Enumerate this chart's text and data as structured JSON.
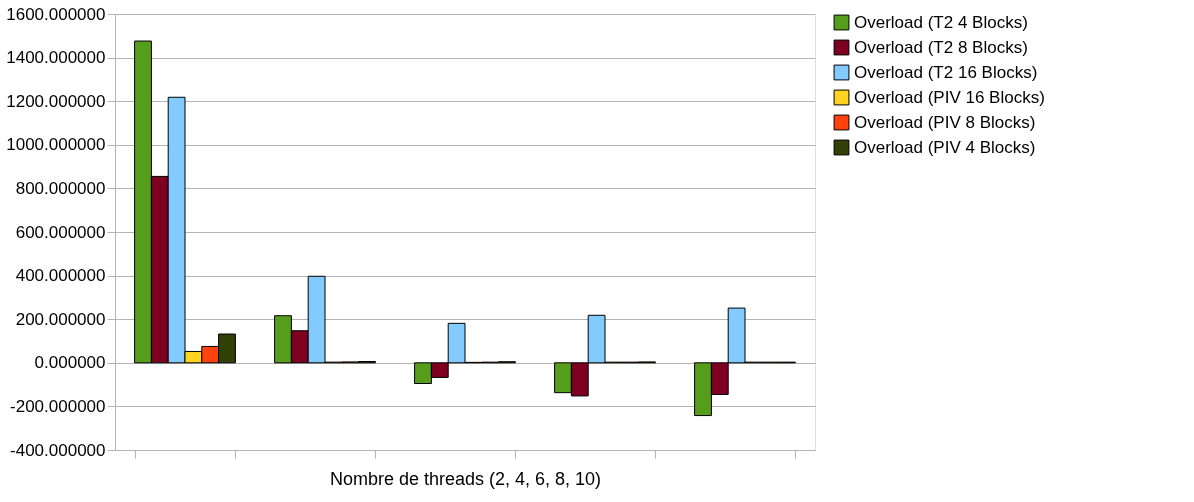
{
  "chart_data": {
    "type": "bar",
    "xlabel": "Nombre de threads (2, 4, 6, 8, 10)",
    "categories": [
      null,
      null,
      null,
      null,
      null
    ],
    "series": [
      {
        "name": "Overload (T2 4 Blocks)",
        "color": "#579d1c",
        "values": [
          1476,
          216,
          -95,
          -137,
          -242
        ]
      },
      {
        "name": "Overload (T2 8 Blocks)",
        "color": "#7e0021",
        "values": [
          855,
          147,
          -67,
          -152,
          -145
        ]
      },
      {
        "name": "Overload (T2 16 Blocks)",
        "color": "#83caff",
        "values": [
          1218,
          397,
          181,
          218,
          251
        ]
      },
      {
        "name": "Overload (PIV 16 Blocks)",
        "color": "#ffd320",
        "values": [
          52,
          3,
          2,
          3,
          3
        ]
      },
      {
        "name": "Overload (PIV 8 Blocks)",
        "color": "#ff420e",
        "values": [
          75,
          4,
          3,
          3,
          3
        ]
      },
      {
        "name": "Overload (PIV 4 Blocks)",
        "color": "#314004",
        "values": [
          132,
          6,
          5,
          4,
          3
        ]
      }
    ],
    "ylim": [
      -400,
      1600
    ],
    "yticks": [
      {
        "value": -400,
        "label": "-400.000000"
      },
      {
        "value": -200,
        "label": "-200.000000"
      },
      {
        "value": 0,
        "label": "0.000000"
      },
      {
        "value": 200,
        "label": "200.000000"
      },
      {
        "value": 400,
        "label": "400.000000"
      },
      {
        "value": 600,
        "label": "600.000000"
      },
      {
        "value": 800,
        "label": "800.000000"
      },
      {
        "value": 1000,
        "label": "1000.000000"
      },
      {
        "value": 1200,
        "label": "1200.000000"
      },
      {
        "value": 1400,
        "label": "1400.000000"
      },
      {
        "value": 1600,
        "label": "1600.000000"
      }
    ],
    "grid": "y",
    "legend": "right"
  }
}
